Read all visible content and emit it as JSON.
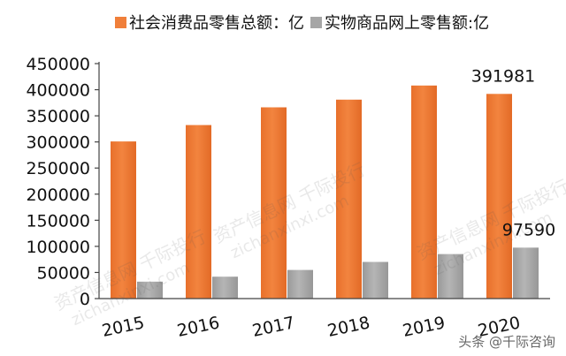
{
  "chart_data": {
    "type": "bar",
    "title": "",
    "xlabel": "",
    "ylabel": "",
    "ylim": [
      0,
      450000
    ],
    "yticks": [
      0,
      50000,
      100000,
      150000,
      200000,
      250000,
      300000,
      350000,
      400000,
      450000
    ],
    "categories": [
      "2015",
      "2016",
      "2017",
      "2018",
      "2019",
      "2020"
    ],
    "series": [
      {
        "name": "社会消费品零售总额：亿",
        "color": "#f07f3a",
        "values": [
          300931,
          332316,
          366262,
          380987,
          408017,
          391981
        ]
      },
      {
        "name": "实物商品网上零售额:亿",
        "color": "#a6a6a6",
        "values": [
          32424,
          41944,
          54806,
          70198,
          85239,
          97590
        ]
      }
    ],
    "data_labels": [
      {
        "series": 0,
        "index": 5,
        "text": "391981"
      },
      {
        "series": 1,
        "index": 5,
        "text": "97590"
      }
    ],
    "legend_position": "top",
    "grid": false
  },
  "watermark": {
    "text_top": "资产信息网 千际投行",
    "text_url": "zichanxinxi.com",
    "footer": "头条 @千际咨询"
  }
}
